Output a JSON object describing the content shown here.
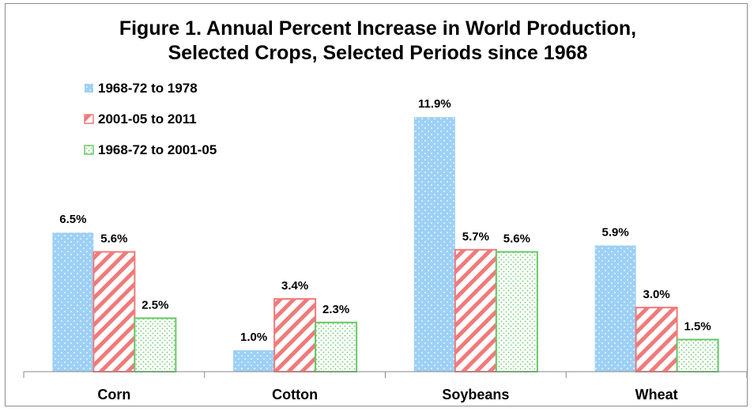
{
  "chart_data": {
    "type": "bar",
    "title_line1": "Figure 1.  Annual Percent Increase in World Production,",
    "title_line2": "Selected Crops, Selected Periods since 1968",
    "categories": [
      "Corn",
      "Cotton",
      "Soybeans",
      "Wheat"
    ],
    "series": [
      {
        "name": "1968-72 to 1978",
        "values": [
          6.5,
          1.0,
          11.9,
          5.9
        ],
        "labels": [
          "6.5%",
          "1.0%",
          "11.9%",
          "5.9%"
        ],
        "color": "#9dd0f5",
        "pattern": "dots"
      },
      {
        "name": "2001-05 to 2011",
        "values": [
          5.6,
          3.4,
          5.7,
          3.0
        ],
        "labels": [
          "5.6%",
          "3.4%",
          "5.7%",
          "3.0%"
        ],
        "color": "#f07a7a",
        "pattern": "diagonal-stripes"
      },
      {
        "name": "1968-72 to 2001-05",
        "values": [
          2.5,
          2.3,
          5.6,
          1.5
        ],
        "labels": [
          "2.5%",
          "2.3%",
          "5.6%",
          "1.5%"
        ],
        "color": "#66c966",
        "pattern": "dots-outline"
      }
    ],
    "ylim": [
      0,
      13.5
    ],
    "grid": false,
    "legend_position": "top-left"
  }
}
